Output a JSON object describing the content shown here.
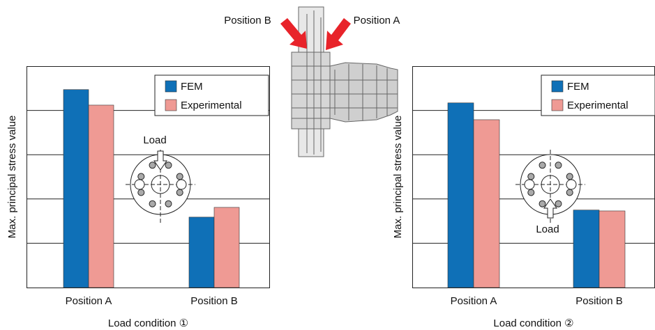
{
  "chart_data": [
    {
      "type": "bar",
      "x_label": "Load condition ①",
      "y_label": "Max. principal stress value",
      "annotation": "Load",
      "categories": [
        "Position A",
        "Position B"
      ],
      "series": [
        {
          "name": "FEM",
          "color": "#0f70b7",
          "values": [
            4.47,
            1.59
          ]
        },
        {
          "name": "Experimental",
          "color": "#ef9a94",
          "values": [
            4.12,
            1.81
          ]
        }
      ],
      "ylim": [
        0,
        5
      ],
      "yticks": [
        1,
        2,
        3,
        4
      ],
      "grid": true,
      "legend": "upper right"
    },
    {
      "type": "bar",
      "x_label": "Load condition ②",
      "y_label": "Max. principal stress value",
      "annotation": "Load",
      "categories": [
        "Position A",
        "Position B"
      ],
      "series": [
        {
          "name": "FEM",
          "color": "#0f70b7",
          "values": [
            4.17,
            1.75
          ]
        },
        {
          "name": "Experimental",
          "color": "#ef9a94",
          "values": [
            3.79,
            1.73
          ]
        }
      ],
      "ylim": [
        0,
        5
      ],
      "yticks": [
        1,
        2,
        3,
        4
      ],
      "grid": true,
      "legend": "upper right"
    }
  ],
  "diagram": {
    "labels": [
      "Position B",
      "Position A"
    ]
  }
}
